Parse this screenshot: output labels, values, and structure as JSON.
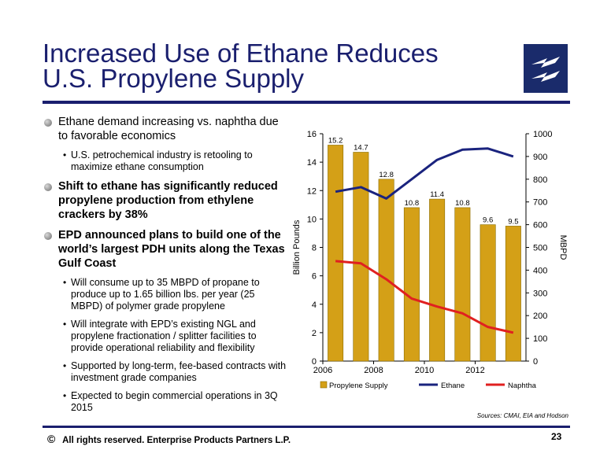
{
  "title_line1": "Increased Use of Ethane Reduces",
  "title_line2": "U.S. Propylene Supply",
  "bullets": [
    {
      "text": "Ethane demand increasing vs. naphtha due to favorable economics",
      "bold": false,
      "sub": [
        "U.S. petrochemical industry is retooling to maximize ethane consumption"
      ]
    },
    {
      "text": "Shift to ethane has significantly reduced propylene production from ethylene crackers by 38%",
      "bold": true,
      "sub": []
    },
    {
      "text": "EPD announced plans to build one of the world’s largest PDH units along the Texas Gulf Coast",
      "bold": true,
      "sub": [
        "Will consume up to 35 MBPD of propane to produce up to 1.65 billion lbs. per year (25 MBPD) of polymer grade propylene",
        "Will integrate with EPD’s existing NGL and propylene fractionation / splitter facilities to provide operational reliability and flexibility",
        "Supported by long-term, fee-based contracts with investment grade companies",
        "Expected to begin commercial operations in 3Q 2015"
      ]
    }
  ],
  "chart_data": {
    "type": "bar",
    "categories": [
      "2006",
      "2007",
      "2008",
      "2009",
      "2010",
      "2011",
      "2012",
      "2013"
    ],
    "x_tick_labels": [
      "2006",
      "2008",
      "2010",
      "2012"
    ],
    "series": [
      {
        "name": "Propylene Supply",
        "type": "bar",
        "axis": "left",
        "color": "#d4a017",
        "values": [
          15.2,
          14.7,
          12.8,
          10.8,
          11.4,
          10.8,
          9.6,
          9.5
        ]
      },
      {
        "name": "Ethane",
        "type": "line",
        "axis": "right",
        "color": "#1a237e",
        "values": [
          745,
          765,
          715,
          800,
          885,
          930,
          935,
          900
        ]
      },
      {
        "name": "Naphtha",
        "type": "line",
        "axis": "right",
        "color": "#e02020",
        "values": [
          440,
          430,
          360,
          275,
          240,
          210,
          150,
          125
        ]
      }
    ],
    "ylabel": "Billion Pounds",
    "y2label": "MBPD",
    "ylim": [
      0,
      16
    ],
    "y2lim": [
      0,
      1000
    ],
    "yticks": [
      0,
      2,
      4,
      6,
      8,
      10,
      12,
      14,
      16
    ],
    "y2ticks": [
      0,
      100,
      200,
      300,
      400,
      500,
      600,
      700,
      800,
      900,
      1000
    ],
    "legend_position": "bottom",
    "grid": false
  },
  "sources": "Sources:  CMAI, EIA and Hodson",
  "footer": {
    "copyright_symbol": "©",
    "text": "All rights reserved. Enterprise Products Partners L.P."
  },
  "page_number": "23",
  "colors": {
    "brand_navy": "#1a1f6e",
    "bar_gold": "#d4a017",
    "ethane": "#1a237e",
    "naphtha": "#e02020"
  }
}
